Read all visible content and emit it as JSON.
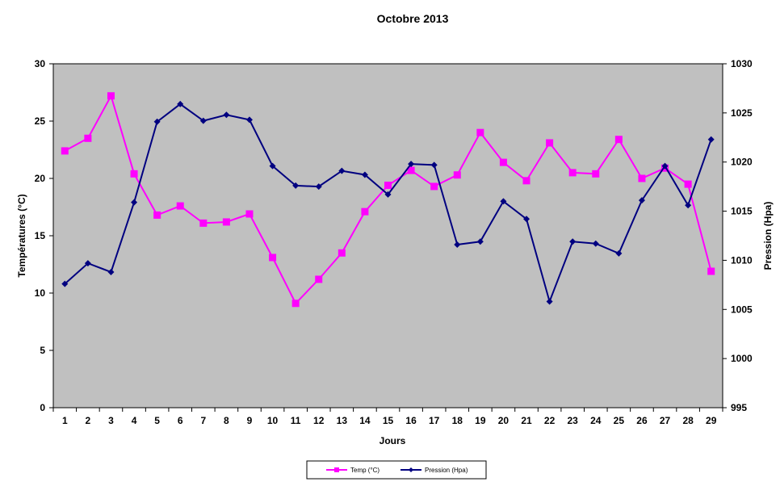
{
  "chart_data": {
    "type": "line",
    "title": "Octobre 2013",
    "xlabel": "Jours",
    "ylabel_left": "Températures (°C)",
    "ylabel_right": "Pression (Hpa)",
    "categories": [
      "1",
      "2",
      "3",
      "4",
      "5",
      "6",
      "7",
      "8",
      "9",
      "10",
      "11",
      "12",
      "13",
      "14",
      "15",
      "16",
      "17",
      "18",
      "19",
      "20",
      "21",
      "22",
      "23",
      "24",
      "25",
      "26",
      "27",
      "28",
      "29"
    ],
    "ylim_left": [
      0,
      30
    ],
    "yticks_left": [
      0,
      5,
      10,
      15,
      20,
      25,
      30
    ],
    "ylim_right": [
      995,
      1030
    ],
    "yticks_right": [
      995,
      1000,
      1005,
      1010,
      1015,
      1020,
      1025,
      1030
    ],
    "series": [
      {
        "name": "Temp (°C)",
        "axis": "left",
        "color": "#ff00ff",
        "marker": "square",
        "values": [
          22.4,
          23.5,
          27.2,
          20.4,
          16.8,
          17.6,
          16.1,
          16.2,
          16.9,
          13.1,
          9.1,
          11.2,
          13.5,
          17.1,
          19.4,
          20.7,
          19.3,
          20.3,
          24.0,
          21.4,
          19.8,
          23.1,
          20.5,
          20.4,
          23.4,
          20.0,
          20.9,
          19.5,
          11.9
        ]
      },
      {
        "name": "Pression (Hpa)",
        "axis": "right",
        "color": "#000080",
        "marker": "diamond",
        "values": [
          1007.6,
          1009.7,
          1008.8,
          1015.9,
          1024.1,
          1025.9,
          1024.2,
          1024.8,
          1024.3,
          1019.6,
          1017.6,
          1017.5,
          1019.1,
          1018.7,
          1016.7,
          1019.8,
          1019.7,
          1011.6,
          1011.9,
          1016.0,
          1014.2,
          1005.8,
          1011.9,
          1011.7,
          1010.7,
          1016.1,
          1019.6,
          1015.6,
          1022.3
        ]
      }
    ],
    "plot_background": "#c0c0c0",
    "grid": false,
    "legend_position": "bottom"
  }
}
